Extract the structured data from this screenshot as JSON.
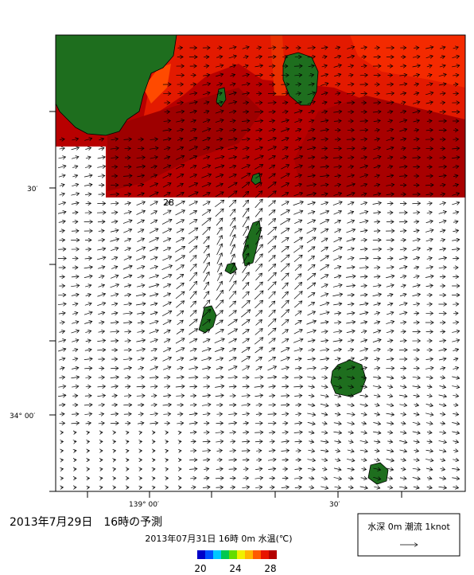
{
  "map": {
    "lat_labels": [
      "30′",
      "34° 00′"
    ],
    "lon_labels": [
      "139° 00′",
      "30′"
    ],
    "contour_label": "28",
    "caption": "2013年7月29日　16時の予測",
    "subtitle": "2013年07月31日 16時 0m 水温(℃)",
    "colorbar": {
      "ticks": [
        20,
        24,
        28
      ]
    },
    "legend": "水深 0m 潮流 1knot"
  }
}
